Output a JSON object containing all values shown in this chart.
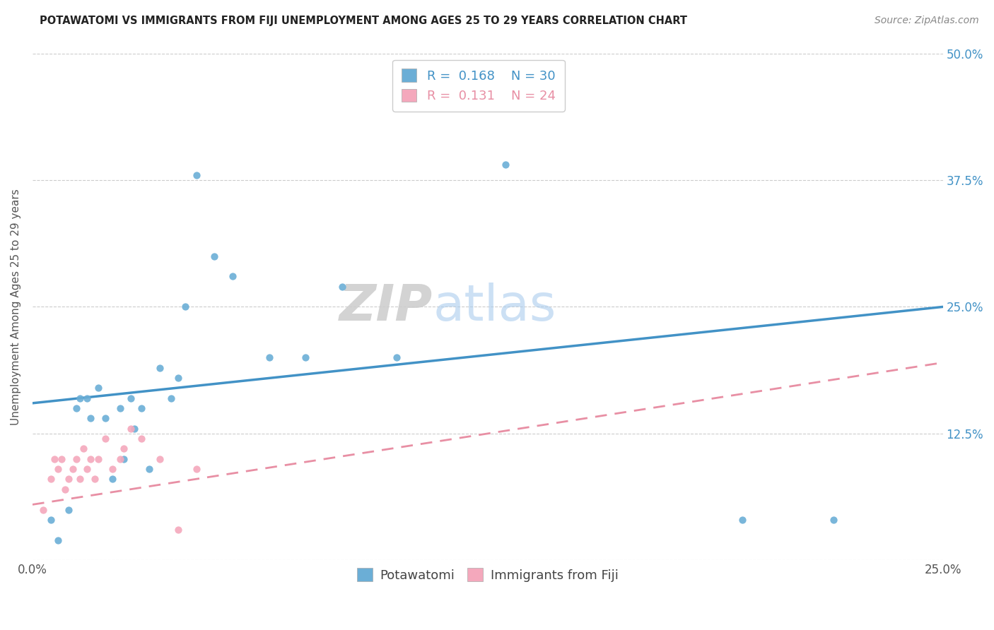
{
  "title": "POTAWATOMI VS IMMIGRANTS FROM FIJI UNEMPLOYMENT AMONG AGES 25 TO 29 YEARS CORRELATION CHART",
  "source": "Source: ZipAtlas.com",
  "ylabel": "Unemployment Among Ages 25 to 29 years",
  "xlabel": "",
  "legend_label1": "Potawatomi",
  "legend_label2": "Immigrants from Fiji",
  "R1": 0.168,
  "N1": 30,
  "R2": 0.131,
  "N2": 24,
  "color1": "#6baed6",
  "color2": "#f4a8bc",
  "line_color1": "#4292c6",
  "line_color2": "#e88fa4",
  "xlim": [
    0.0,
    0.25
  ],
  "ylim": [
    0.0,
    0.5
  ],
  "xticks": [
    0.0,
    0.25
  ],
  "xticklabels": [
    "0.0%",
    "25.0%"
  ],
  "yticks_left": [
    0.0,
    0.125,
    0.25,
    0.375,
    0.5
  ],
  "yticks_right": [
    0.0,
    0.125,
    0.25,
    0.375,
    0.5
  ],
  "yticklabels_left": [
    "",
    "",
    "",
    "",
    ""
  ],
  "yticklabels_right": [
    "",
    "12.5%",
    "25.0%",
    "37.5%",
    "50.0%"
  ],
  "potawatomi_x": [
    0.005,
    0.007,
    0.01,
    0.012,
    0.013,
    0.015,
    0.016,
    0.018,
    0.02,
    0.022,
    0.024,
    0.025,
    0.027,
    0.028,
    0.03,
    0.032,
    0.035,
    0.038,
    0.04,
    0.042,
    0.045,
    0.05,
    0.055,
    0.065,
    0.075,
    0.085,
    0.1,
    0.13,
    0.195,
    0.22
  ],
  "potawatomi_y": [
    0.04,
    0.02,
    0.05,
    0.15,
    0.16,
    0.16,
    0.14,
    0.17,
    0.14,
    0.08,
    0.15,
    0.1,
    0.16,
    0.13,
    0.15,
    0.09,
    0.19,
    0.16,
    0.18,
    0.25,
    0.38,
    0.3,
    0.28,
    0.2,
    0.2,
    0.27,
    0.2,
    0.39,
    0.04,
    0.04
  ],
  "fiji_x": [
    0.003,
    0.005,
    0.006,
    0.007,
    0.008,
    0.009,
    0.01,
    0.011,
    0.012,
    0.013,
    0.014,
    0.015,
    0.016,
    0.017,
    0.018,
    0.02,
    0.022,
    0.024,
    0.025,
    0.027,
    0.03,
    0.035,
    0.04,
    0.045
  ],
  "fiji_y": [
    0.05,
    0.08,
    0.1,
    0.09,
    0.1,
    0.07,
    0.08,
    0.09,
    0.1,
    0.08,
    0.11,
    0.09,
    0.1,
    0.08,
    0.1,
    0.12,
    0.09,
    0.1,
    0.11,
    0.13,
    0.12,
    0.1,
    0.03,
    0.09
  ],
  "trendline1_x0": 0.0,
  "trendline1_y0": 0.155,
  "trendline1_x1": 0.25,
  "trendline1_y1": 0.25,
  "trendline2_x0": 0.0,
  "trendline2_y0": 0.055,
  "trendline2_x1": 0.25,
  "trendline2_y1": 0.195,
  "watermark": "ZIPatlas",
  "watermark_zip": "ZIP",
  "watermark_atlas": "atlas"
}
